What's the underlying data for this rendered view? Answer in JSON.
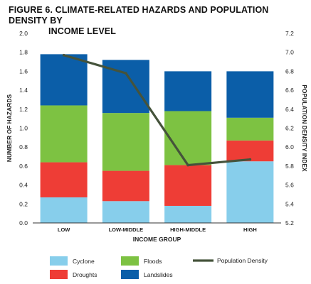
{
  "title_line1": "FIGURE 6. CLIMATE-RELATED HAZARDS AND POPULATION DENSITY BY",
  "title_line2": "INCOME LEVEL",
  "colors": {
    "cyclone": "#87ceeb",
    "droughts": "#ee3d36",
    "floods": "#7dc242",
    "landslides": "#0b5ea8",
    "population_density": "#45533b"
  },
  "chart_data": {
    "type": "bar",
    "stacked": true,
    "categories": [
      "LOW",
      "LOW-MIDDLE",
      "HIGH-MIDDLE",
      "HIGH"
    ],
    "xlabel": "INCOME GROUP",
    "ylabel": "NUMBER OF HAZARDS",
    "y2label": "POPULATION DENSITY INDEX",
    "ylim": [
      0,
      2.0
    ],
    "y2lim": [
      5.2,
      7.2
    ],
    "yticks": [
      "0.0",
      "0.2",
      "0.4",
      "0.6",
      "0.8",
      "1.0",
      "1.2",
      "1.4",
      "1.6",
      "1.8",
      "2.0"
    ],
    "y2ticks": [
      "5.2",
      "5.4",
      "5.6",
      "5.8",
      "6.0",
      "6.2",
      "6.4",
      "6.6",
      "6.8",
      "7.0",
      "7.2"
    ],
    "series": [
      {
        "name": "Cyclone",
        "color_key": "cyclone",
        "values": [
          0.27,
          0.23,
          0.18,
          0.65
        ]
      },
      {
        "name": "Droughts",
        "color_key": "droughts",
        "values": [
          0.37,
          0.32,
          0.43,
          0.22
        ]
      },
      {
        "name": "Floods",
        "color_key": "floods",
        "values": [
          0.6,
          0.61,
          0.57,
          0.24
        ]
      },
      {
        "name": "Landslides",
        "color_key": "landslides",
        "values": [
          0.54,
          0.56,
          0.42,
          0.49
        ]
      }
    ],
    "line_series": {
      "name": "Population Density",
      "color_key": "population_density",
      "axis": "right",
      "values": [
        6.97,
        6.78,
        5.81,
        5.87
      ]
    },
    "legend_position": "bottom",
    "grid": false
  }
}
